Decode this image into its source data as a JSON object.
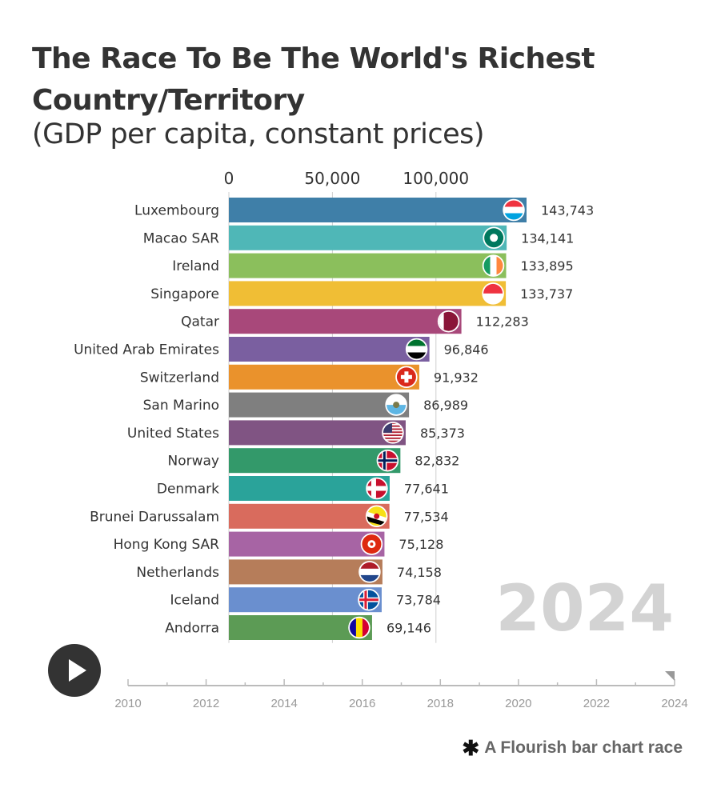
{
  "title": "The Race To Be The World's Richest Country/Territory",
  "subtitle": "(GDP per capita, constant prices)",
  "play_icon": "play-icon",
  "footer": {
    "icon": "asterisk-icon",
    "text": "A Flourish bar chart race"
  },
  "timeline": {
    "years": [
      "2010",
      "2012",
      "2014",
      "2016",
      "2018",
      "2020",
      "2022",
      "2024"
    ],
    "current_year": 2024,
    "start_year": 2010,
    "end_year": 2024
  },
  "chart_data": {
    "type": "bar",
    "orientation": "horizontal",
    "year_label": "2024",
    "xlim": [
      0,
      143743
    ],
    "x_ticks": [
      "0",
      "50,000",
      "100,000"
    ],
    "x_tick_values": [
      0,
      50000,
      100000
    ],
    "grid": true,
    "categories": [
      "Luxembourg",
      "Macao SAR",
      "Ireland",
      "Singapore",
      "Qatar",
      "United Arab Emirates",
      "Switzerland",
      "San Marino",
      "United States",
      "Norway",
      "Denmark",
      "Brunei Darussalam",
      "Hong Kong SAR",
      "Netherlands",
      "Iceland",
      "Andorra"
    ],
    "values": [
      143743,
      134141,
      133895,
      133737,
      112283,
      96846,
      91932,
      86989,
      85373,
      82832,
      77641,
      77534,
      75128,
      74158,
      73784,
      69146
    ],
    "value_labels": [
      "143,743",
      "134,141",
      "133,895",
      "133,737",
      "112,283",
      "96,846",
      "91,932",
      "86,989",
      "85,373",
      "82,832",
      "77,641",
      "77,534",
      "75,128",
      "74,158",
      "73,784",
      "69,146"
    ],
    "colors": [
      "#3f7fa8",
      "#4fb7b7",
      "#8bbf5c",
      "#f0be35",
      "#a8487a",
      "#7a5fa0",
      "#ea922c",
      "#7f7f7f",
      "#805483",
      "#33996a",
      "#2aa39a",
      "#d96b5d",
      "#a764a4",
      "#b67d5a",
      "#6a8fcf",
      "#5c9b55"
    ],
    "flag_icons": [
      "luxembourg-flag-icon",
      "macao-flag-icon",
      "ireland-flag-icon",
      "singapore-flag-icon",
      "qatar-flag-icon",
      "uae-flag-icon",
      "switzerland-flag-icon",
      "san-marino-flag-icon",
      "usa-flag-icon",
      "norway-flag-icon",
      "denmark-flag-icon",
      "brunei-flag-icon",
      "hong-kong-flag-icon",
      "netherlands-flag-icon",
      "iceland-flag-icon",
      "andorra-flag-icon"
    ]
  }
}
